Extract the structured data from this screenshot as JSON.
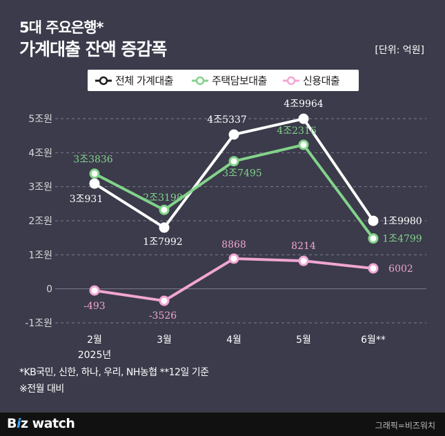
{
  "header": {
    "title_line1": "5대 주요은행*",
    "title_line2": "가계대출 잔액 증감폭",
    "unit": "[단위: 억원]"
  },
  "colors": {
    "background": "#3b3b4b",
    "total": "#ffffff",
    "mortgage": "#82d38a",
    "credit": "#f1a6d2",
    "grid": "#7d7d8c"
  },
  "chart_data": {
    "type": "line",
    "categories": [
      "2월",
      "3월",
      "4월",
      "5월",
      "6월**"
    ],
    "x_sublabels": [
      "2025년",
      "",
      "",
      "",
      ""
    ],
    "y_ticks": [
      {
        "value": 50000,
        "label": "5조원"
      },
      {
        "value": 40000,
        "label": "4조원"
      },
      {
        "value": 30000,
        "label": "3조원"
      },
      {
        "value": 20000,
        "label": "2조원"
      },
      {
        "value": 10000,
        "label": "1조원"
      },
      {
        "value": 0,
        "label": "0"
      },
      {
        "value": -10000,
        "label": "-1조원"
      }
    ],
    "ylim": [
      -10000,
      50000
    ],
    "grid": true,
    "legend_position": "top",
    "series": [
      {
        "name": "전체 가계대출",
        "color": "#ffffff",
        "values": [
          30931,
          17992,
          45337,
          49964,
          19980
        ],
        "labels": [
          "3조931",
          "1조7992",
          "4조5337",
          "4조9964",
          "1조9980"
        ],
        "label_color": "#ffffff"
      },
      {
        "name": "주택담보대출",
        "color": "#82d38a",
        "values": [
          33836,
          23198,
          37495,
          42316,
          14799
        ],
        "labels": [
          "3조3836",
          "2조3198",
          "3조7495",
          "4조2316",
          "1조4799"
        ],
        "label_color": "#82d38a"
      },
      {
        "name": "신용대출",
        "color": "#f1a6d2",
        "values": [
          -493,
          -3526,
          8868,
          8214,
          6002
        ],
        "labels": [
          "-493",
          "-3526",
          "8868",
          "8214",
          "6002"
        ],
        "label_color": "#f1a6d2"
      }
    ]
  },
  "footnotes": {
    "banks": "*KB국민, 신한, 하나, 우리, NH농협    **12일 기준",
    "basis": "※전월 대비"
  },
  "footer": {
    "logo_b": "B",
    "logo_accent": "i",
    "logo_z": "z",
    "logo_rest": " watch",
    "credit": "그래픽=비즈워치"
  }
}
